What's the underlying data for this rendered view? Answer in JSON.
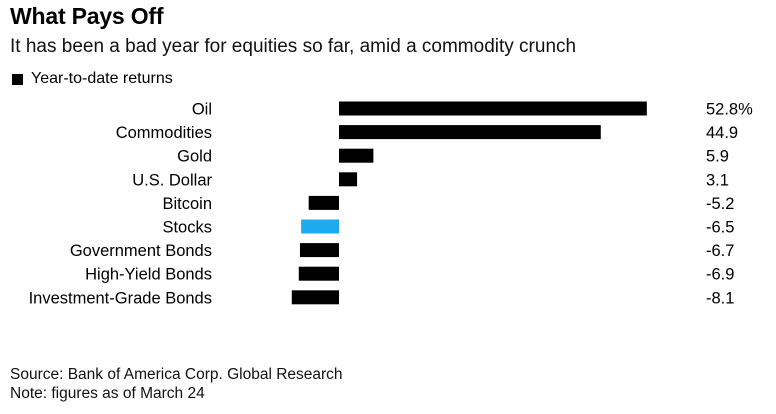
{
  "header": {
    "title": "What Pays Off",
    "subtitle": "It has been a bad year for equities so far, amid a commodity crunch"
  },
  "legend": {
    "label": "Year-to-date returns"
  },
  "footer": {
    "source": "Source: Bank of America Corp. Global Research",
    "note": "Note: figures as of March 24"
  },
  "colors": {
    "bar": "#000000",
    "highlight": "#1eaaf1"
  },
  "chart_data": {
    "type": "bar",
    "orientation": "horizontal",
    "title": "What Pays Off",
    "subtitle": "It has been a bad year for equities so far, amid a commodity crunch",
    "xlabel": "",
    "ylabel": "",
    "grid": false,
    "legend_position": "top-left",
    "categories": [
      "Oil",
      "Commodities",
      "Gold",
      "U.S. Dollar",
      "Bitcoin",
      "Stocks",
      "Government Bonds",
      "High-Yield Bonds",
      "Investment-Grade Bonds"
    ],
    "series": [
      {
        "name": "Year-to-date returns",
        "values": [
          52.8,
          44.9,
          5.9,
          3.1,
          -5.2,
          -6.5,
          -6.7,
          -6.9,
          -8.1
        ],
        "labels": [
          "52.8%",
          "44.9",
          "5.9",
          "3.1",
          "-5.2",
          "-6.5",
          "-6.7",
          "-6.9",
          "-8.1"
        ]
      }
    ],
    "highlight_category": "Stocks",
    "xlim": [
      -8.1,
      52.8
    ]
  }
}
